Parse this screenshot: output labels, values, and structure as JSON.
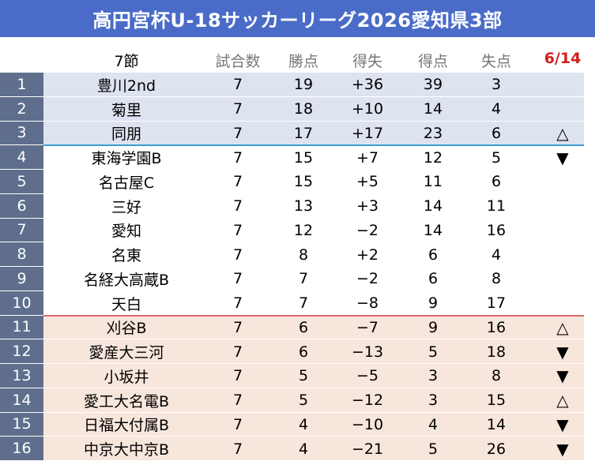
{
  "title": "高円宮杯U-18サッカーリーグ2026愛知県3部",
  "header": {
    "round": "7節",
    "games": "試合数",
    "points": "勝点",
    "goal_diff": "得失",
    "goals_for": "得点",
    "goals_against": "失点",
    "date": "6/14"
  },
  "rows": [
    {
      "rank": "1",
      "team": "豊川2nd",
      "games": "7",
      "points": "19",
      "diff": "+36",
      "gf": "39",
      "ga": "3",
      "mark": ""
    },
    {
      "rank": "2",
      "team": "菊里",
      "games": "7",
      "points": "18",
      "diff": "+10",
      "gf": "14",
      "ga": "4",
      "mark": ""
    },
    {
      "rank": "3",
      "team": "同朋",
      "games": "7",
      "points": "17",
      "diff": "+17",
      "gf": "23",
      "ga": "6",
      "mark": "△"
    },
    {
      "rank": "4",
      "team": "東海学園B",
      "games": "7",
      "points": "15",
      "diff": "+7",
      "gf": "12",
      "ga": "5",
      "mark": "▼"
    },
    {
      "rank": "5",
      "team": "名古屋C",
      "games": "7",
      "points": "15",
      "diff": "+5",
      "gf": "11",
      "ga": "6",
      "mark": ""
    },
    {
      "rank": "6",
      "team": "三好",
      "games": "7",
      "points": "13",
      "diff": "+3",
      "gf": "14",
      "ga": "11",
      "mark": ""
    },
    {
      "rank": "7",
      "team": "愛知",
      "games": "7",
      "points": "12",
      "diff": "−2",
      "gf": "14",
      "ga": "16",
      "mark": ""
    },
    {
      "rank": "8",
      "team": "名東",
      "games": "7",
      "points": "8",
      "diff": "+2",
      "gf": "6",
      "ga": "4",
      "mark": ""
    },
    {
      "rank": "9",
      "team": "名経大高蔵B",
      "games": "7",
      "points": "7",
      "diff": "−2",
      "gf": "6",
      "ga": "8",
      "mark": ""
    },
    {
      "rank": "10",
      "team": "天白",
      "games": "7",
      "points": "7",
      "diff": "−8",
      "gf": "9",
      "ga": "17",
      "mark": ""
    },
    {
      "rank": "11",
      "team": "刈谷B",
      "games": "7",
      "points": "6",
      "diff": "−7",
      "gf": "9",
      "ga": "16",
      "mark": "△"
    },
    {
      "rank": "12",
      "team": "愛産大三河",
      "games": "7",
      "points": "6",
      "diff": "−13",
      "gf": "5",
      "ga": "18",
      "mark": "▼"
    },
    {
      "rank": "13",
      "team": "小坂井",
      "games": "7",
      "points": "5",
      "diff": "−5",
      "gf": "3",
      "ga": "8",
      "mark": "▼"
    },
    {
      "rank": "14",
      "team": "愛工大名電B",
      "games": "7",
      "points": "5",
      "diff": "−12",
      "gf": "3",
      "ga": "15",
      "mark": "△"
    },
    {
      "rank": "15",
      "team": "日福大付属B",
      "games": "7",
      "points": "4",
      "diff": "−10",
      "gf": "4",
      "ga": "14",
      "mark": "▼"
    },
    {
      "rank": "16",
      "team": "中京大中京B",
      "games": "7",
      "points": "4",
      "diff": "−21",
      "gf": "5",
      "ga": "26",
      "mark": "▼"
    }
  ],
  "colors": {
    "title_bg": "#4a6cc8",
    "rank_bg": "#5e6e8c",
    "top_zone_bg": "#dde3ef",
    "bottom_zone_bg": "#f7e6dc",
    "promotion_line": "#3f9ad6",
    "relegation_line": "#e06a6a",
    "date_color": "#d21f1f"
  }
}
